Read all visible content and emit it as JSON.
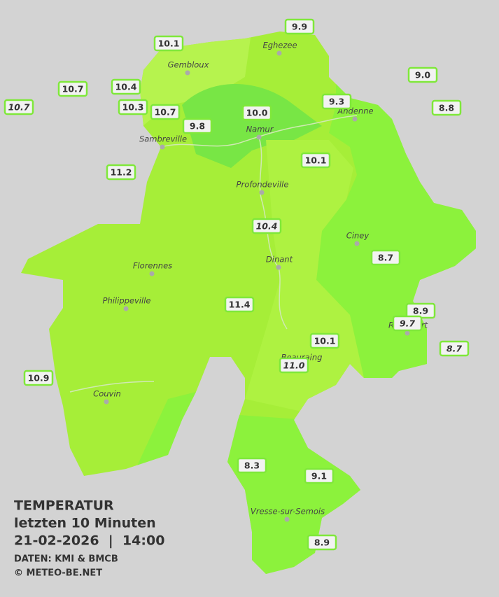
{
  "title": {
    "lines": [
      "TEMPERATUR",
      "letzten 10 Minuten",
      "21-02-2026  |  14:00"
    ],
    "credits": [
      "DATEN: KMI & BMCB",
      "© METEO-BE.NET"
    ]
  },
  "cities": [
    "Eghezee",
    "Gembloux",
    "Andenne",
    "Namur",
    "Sambreville",
    "Profondeville",
    "Ciney",
    "Dinant",
    "Florennes",
    "Philippeville",
    "Rochefort",
    "Beauraing",
    "Couvin",
    "Vresse-sur-Semois"
  ],
  "stations": [
    {
      "label": "10.1"
    },
    {
      "label": "9.9"
    },
    {
      "label": "9.0"
    },
    {
      "label": "10.7"
    },
    {
      "label": "10.4"
    },
    {
      "label": "10.7",
      "italic": true
    },
    {
      "label": "10.3"
    },
    {
      "label": "10.7"
    },
    {
      "label": "9.3"
    },
    {
      "label": "8.8"
    },
    {
      "label": "10.0"
    },
    {
      "label": "9.8"
    },
    {
      "label": "10.1"
    },
    {
      "label": "11.2"
    },
    {
      "label": "10.4",
      "italic": true
    },
    {
      "label": "8.7"
    },
    {
      "label": "11.4"
    },
    {
      "label": "8.9"
    },
    {
      "label": "9.7",
      "italic": true
    },
    {
      "label": "10.1"
    },
    {
      "label": "8.7",
      "italic": true
    },
    {
      "label": "11.0",
      "italic": true
    },
    {
      "label": "10.9"
    },
    {
      "label": "8.3"
    },
    {
      "label": "9.1"
    },
    {
      "label": "8.9"
    }
  ]
}
